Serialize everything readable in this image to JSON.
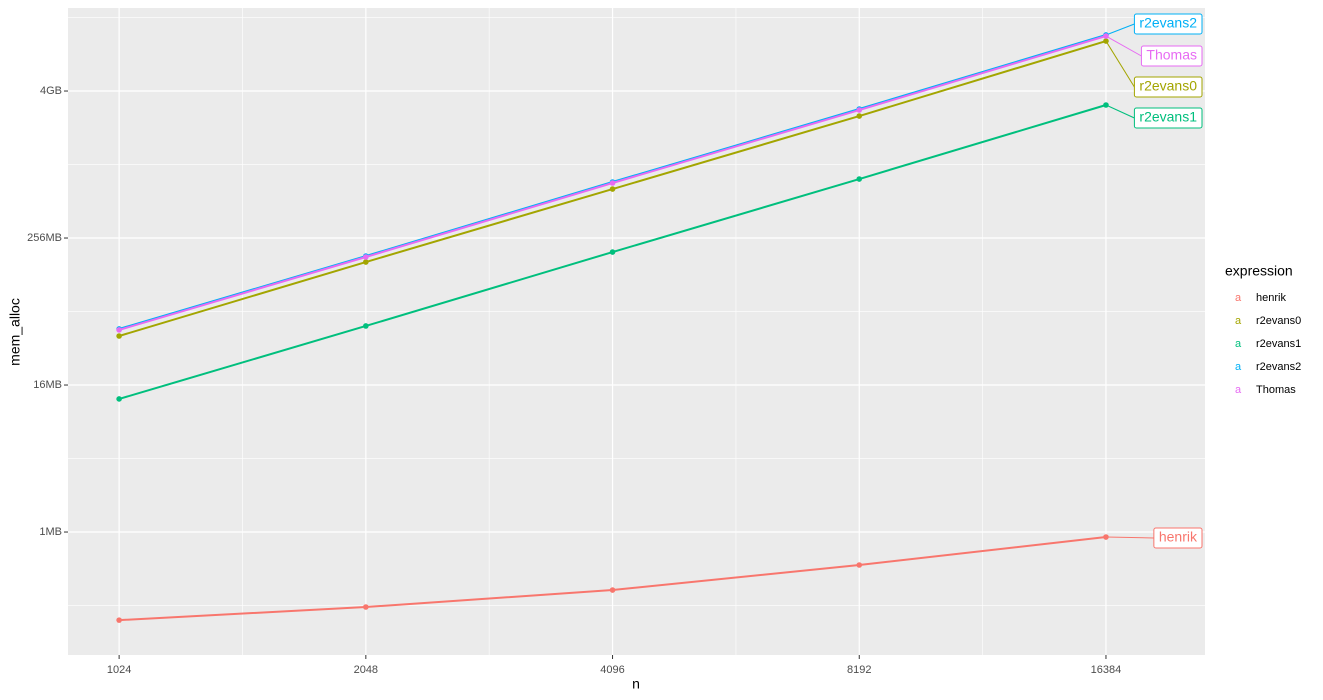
{
  "chart_data": {
    "type": "line",
    "x_label": "n",
    "y_label": "mem_alloc",
    "legend_title": "expression",
    "legend_key_glyph": "a",
    "legend_position": "right",
    "x_log_base": 2,
    "y_log_base": 2,
    "grid": true,
    "xlim": [
      887,
      21640
    ],
    "xticks": [
      1024,
      2048,
      4096,
      8192,
      16384
    ],
    "xminor_ticks": [
      1448,
      2896,
      5793,
      11585
    ],
    "ylim": [
      103100,
      20560000000
    ],
    "yticks": [
      {
        "value": 1048576,
        "label": "1MB"
      },
      {
        "value": 16777216,
        "label": "16MB"
      },
      {
        "value": 268435456,
        "label": "256MB"
      },
      {
        "value": 4294967296,
        "label": "4GB"
      }
    ],
    "yminor_ticks": [
      262144,
      4194304,
      67108864,
      1073741824,
      17179869184
    ],
    "x": [
      1024,
      2048,
      4096,
      8192,
      16384
    ],
    "series": [
      {
        "name": "henrik",
        "color": "#F8766D",
        "values": [
          199000,
          255000,
          351000,
          563000,
          954000
        ]
      },
      {
        "name": "r2evans0",
        "color": "#A3A500",
        "values": [
          42300000,
          170700000,
          676000000,
          2680000000,
          11020000000
        ]
      },
      {
        "name": "r2evans1",
        "color": "#00BF7D",
        "values": [
          12900000,
          51100000,
          206000000,
          816700000,
          3300000000
        ]
      },
      {
        "name": "r2evans2",
        "color": "#00B0F6",
        "values": [
          48300000,
          191000000,
          772000000,
          3060000000,
          12360000000
        ]
      },
      {
        "name": "Thomas",
        "color": "#E76BF3",
        "values": [
          47400000,
          187600000,
          757700000,
          3000000000,
          12120000000
        ]
      }
    ]
  }
}
